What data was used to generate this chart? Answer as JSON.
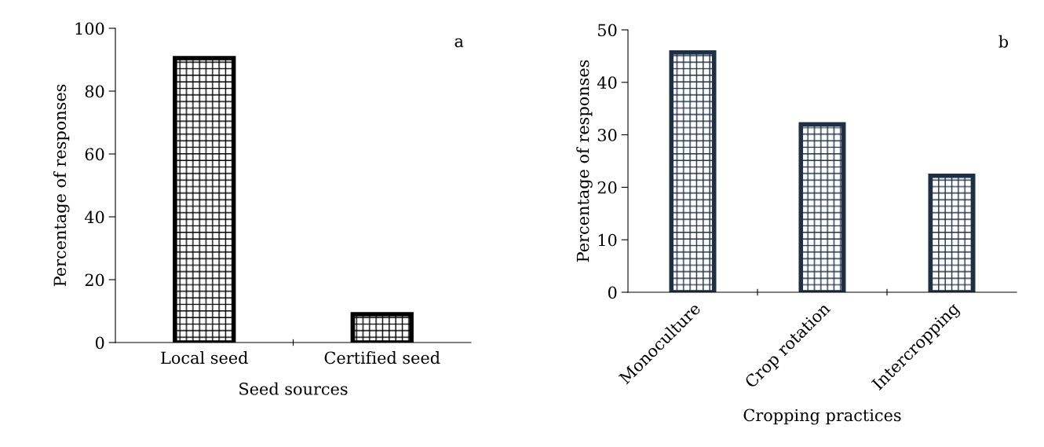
{
  "chart_data": [
    {
      "type": "bar",
      "xlabel": "Seed sources",
      "ylabel": "Percentage of responses",
      "categories": [
        "Local seed",
        "Certified seed"
      ],
      "values": [
        90.5,
        9
      ],
      "color": "#000000",
      "ylim": [
        0,
        100
      ],
      "yticks": [
        0,
        20,
        40,
        60,
        80,
        100
      ],
      "annotations": [
        "a"
      ]
    },
    {
      "type": "bar",
      "xlabel": "Cropping practices",
      "ylabel": "Percentage of responses",
      "categories": [
        "Monoculture",
        "Crop rotation",
        "Intercropping"
      ],
      "values": [
        45.7,
        32.0,
        22.2
      ],
      "color": "#1f3044",
      "ylim": [
        0,
        50
      ],
      "yticks": [
        0,
        10,
        20,
        30,
        40,
        50
      ],
      "annotations": [
        "b"
      ]
    }
  ]
}
